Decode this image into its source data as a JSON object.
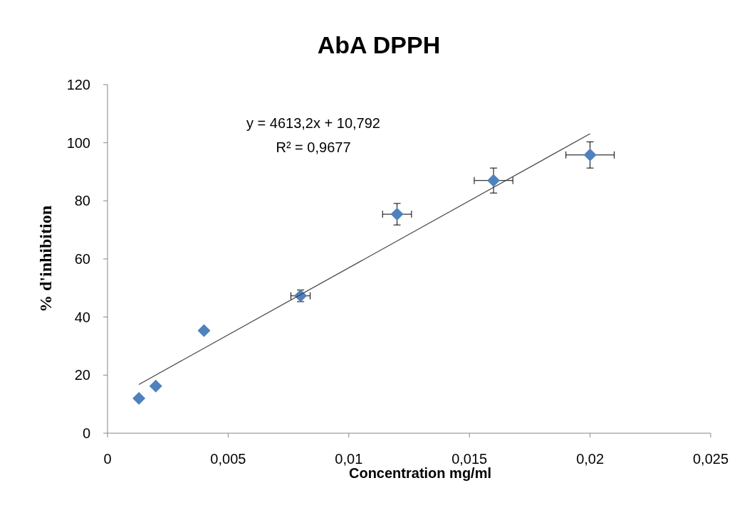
{
  "chart_data": {
    "type": "scatter",
    "title": "AbA DPPH",
    "xlabel": "Concentration mg/ml",
    "ylabel": "% d'inhibition",
    "annotations": [
      "y = 4613,2x + 10,792",
      "R² = 0,9677"
    ],
    "xlim": [
      0,
      0.025
    ],
    "xticks": [
      0,
      {
        "value": 0.005,
        "label": "0,005"
      },
      {
        "value": 0.01,
        "label": "0,01"
      },
      {
        "value": 0.015,
        "label": "0,015"
      },
      {
        "value": 0.02,
        "label": "0,02"
      },
      {
        "value": 0.025,
        "label": "0,025"
      }
    ],
    "ylim": [
      0,
      120
    ],
    "yticks": [
      0,
      20,
      40,
      60,
      80,
      100,
      120
    ],
    "grid": false,
    "series": [
      {
        "color": "#4f81bd",
        "marker": "diamond",
        "x": [
          0.0013,
          0.002,
          0.004,
          0.008,
          0.012,
          0.016,
          0.02
        ],
        "values": [
          12,
          16.2,
          35.3,
          47.3,
          75.4,
          87,
          95.8
        ],
        "errors": [
          null,
          null,
          null,
          2,
          3.7,
          4.3,
          4.5
        ],
        "xerrors": [
          null,
          null,
          null,
          0.0004,
          0.0006,
          0.0008,
          0.001
        ]
      },
      {
        "type": "line",
        "color": "#404040",
        "x": [
          0.0013,
          0.02
        ],
        "values": [
          16.8,
          103.1
        ],
        "line_style": "solid"
      }
    ]
  }
}
